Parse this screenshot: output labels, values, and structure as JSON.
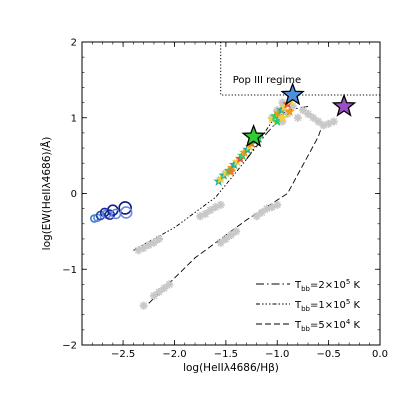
{
  "chart_data": {
    "type": "scatter",
    "title": "",
    "xlabel": "log(HeIIλ4686/Hβ)",
    "ylabel": "log(EW(HeIIλ4686)/Å)",
    "xlim": [
      -2.9,
      0.0
    ],
    "ylim": [
      -2.0,
      2.0
    ],
    "xticks": [
      -2.5,
      -2.0,
      -1.5,
      -1.0,
      -0.5,
      0.0
    ],
    "xtick_labels": [
      "−2.5",
      "−2.0",
      "−1.5",
      "−1.0",
      "−0.5",
      "0.0"
    ],
    "yticks": [
      -2,
      -1,
      0,
      1,
      2
    ],
    "ytick_labels": [
      "−2",
      "−1",
      "0",
      "1",
      "2"
    ],
    "grid": false,
    "legend_position": "bottom-right",
    "annotations": [
      {
        "text": "Pop III regime",
        "x": -1.1,
        "y": 1.5
      }
    ],
    "regions": [
      {
        "name": "pop-iii-regime",
        "style": "dotted",
        "boundary": [
          [
            -1.55,
            2.0
          ],
          [
            -1.55,
            1.3
          ],
          [
            0.0,
            1.3
          ]
        ]
      }
    ],
    "legend": [
      {
        "label": "T_bb=2×10⁵ K",
        "main": "T",
        "sub": "bb",
        "rest": "=2×10",
        "sup": "5",
        "tail": " K",
        "dash": "8 3 1.5 3"
      },
      {
        "label": "T_bb=1×10⁵ K",
        "main": "T",
        "sub": "bb",
        "rest": "=1×10",
        "sup": "5",
        "tail": " K",
        "dash": "4 2 1.5 2 1.5 2 1.5 2"
      },
      {
        "label": "T_bb=5×10⁴ K",
        "main": "T",
        "sub": "bb",
        "rest": "=5×10",
        "sup": "4",
        "tail": " K",
        "dash": "6 3"
      }
    ],
    "series": [
      {
        "kind": "line",
        "color": "#000000",
        "dash": "4 2 1.5 2 1.5 2 1.5 2",
        "points": [
          [
            -2.4,
            -0.75
          ],
          [
            -2.0,
            -0.45
          ],
          [
            -1.6,
            -0.05
          ],
          [
            -1.3,
            0.45
          ],
          [
            -1.05,
            0.95
          ],
          [
            -0.9,
            1.1
          ]
        ]
      },
      {
        "kind": "line",
        "color": "#000000",
        "dash": "6 3",
        "points": [
          [
            -2.25,
            -1.45
          ],
          [
            -1.8,
            -0.85
          ],
          [
            -1.3,
            -0.35
          ],
          [
            -0.9,
            0.0
          ],
          [
            -0.6,
            0.75
          ],
          [
            -0.55,
            0.95
          ]
        ]
      },
      {
        "kind": "line",
        "color": "#000000",
        "dash": "8 3 1.5 3",
        "points": [
          [
            -1.3,
            0.45
          ],
          [
            -1.1,
            0.8
          ],
          [
            -0.9,
            1.1
          ],
          [
            -0.7,
            1.15
          ]
        ]
      },
      {
        "kind": "scatter",
        "marker": "cross-cloud",
        "color": "#c8c8c8",
        "points": [
          [
            -2.35,
            -0.75
          ],
          [
            -2.3,
            -0.72
          ],
          [
            -2.25,
            -0.68
          ],
          [
            -2.2,
            -0.65
          ],
          [
            -2.15,
            -0.6
          ],
          [
            -2.3,
            -1.48
          ],
          [
            -2.2,
            -1.35
          ],
          [
            -2.15,
            -1.3
          ],
          [
            -2.1,
            -1.25
          ],
          [
            -2.05,
            -1.2
          ],
          [
            -1.75,
            -0.3
          ],
          [
            -1.7,
            -0.27
          ],
          [
            -1.65,
            -0.22
          ],
          [
            -1.6,
            -0.18
          ],
          [
            -1.55,
            -0.15
          ],
          [
            -1.55,
            -0.65
          ],
          [
            -1.5,
            -0.6
          ],
          [
            -1.45,
            -0.55
          ],
          [
            -1.4,
            -0.5
          ],
          [
            -1.2,
            -0.3
          ],
          [
            -1.15,
            -0.25
          ],
          [
            -1.1,
            -0.2
          ],
          [
            -1.05,
            -0.18
          ],
          [
            -1.0,
            -0.15
          ],
          [
            -0.95,
            1.2
          ],
          [
            -0.9,
            1.05
          ],
          [
            -0.85,
            1.15
          ],
          [
            -0.8,
            1.0
          ],
          [
            -0.75,
            1.1
          ],
          [
            -0.7,
            1.05
          ],
          [
            -0.65,
            1.0
          ],
          [
            -0.6,
            0.95
          ],
          [
            -0.55,
            0.9
          ],
          [
            -0.5,
            0.92
          ],
          [
            -0.45,
            0.95
          ],
          [
            -1.0,
            1.1
          ],
          [
            -0.95,
            0.95
          ],
          [
            -1.05,
            1.0
          ]
        ]
      },
      {
        "kind": "scatter",
        "marker": "circle-open",
        "points": [
          {
            "x": -2.78,
            "y": -0.33,
            "color": "#3a78c8",
            "r": 3.5
          },
          {
            "x": -2.75,
            "y": -0.32,
            "color": "#5a8ad8",
            "r": 3.5
          },
          {
            "x": -2.72,
            "y": -0.29,
            "color": "#2a4aa8",
            "r": 4
          },
          {
            "x": -2.68,
            "y": -0.25,
            "color": "#142890",
            "r": 4
          },
          {
            "x": -2.66,
            "y": -0.27,
            "color": "#6a8ae0",
            "r": 4
          },
          {
            "x": -2.63,
            "y": -0.28,
            "color": "#1c2c9c",
            "r": 4.5
          },
          {
            "x": -2.6,
            "y": -0.22,
            "color": "#10208a",
            "r": 5
          },
          {
            "x": -2.57,
            "y": -0.27,
            "color": "#6a8ae0",
            "r": 4.5
          },
          {
            "x": -2.48,
            "y": -0.19,
            "color": "#0d1a80",
            "r": 6
          },
          {
            "x": -2.47,
            "y": -0.25,
            "color": "#6a8ae0",
            "r": 5.5
          }
        ]
      },
      {
        "kind": "scatter",
        "marker": "star-small",
        "points": [
          {
            "x": -1.57,
            "y": 0.16,
            "color": "#20b2aa"
          },
          {
            "x": -1.55,
            "y": 0.19,
            "color": "#f4d03f"
          },
          {
            "x": -1.52,
            "y": 0.24,
            "color": "#20b2aa"
          },
          {
            "x": -1.5,
            "y": 0.27,
            "color": "#f4d03f"
          },
          {
            "x": -1.47,
            "y": 0.3,
            "color": "#2ecc71"
          },
          {
            "x": -1.44,
            "y": 0.34,
            "color": "#f39c12"
          },
          {
            "x": -1.42,
            "y": 0.38,
            "color": "#20b2aa"
          },
          {
            "x": -1.39,
            "y": 0.42,
            "color": "#f4d03f"
          },
          {
            "x": -1.36,
            "y": 0.46,
            "color": "#e74c3c"
          },
          {
            "x": -1.34,
            "y": 0.5,
            "color": "#2ecc71"
          },
          {
            "x": -1.32,
            "y": 0.54,
            "color": "#f39c12"
          },
          {
            "x": -1.29,
            "y": 0.58,
            "color": "#20b2aa"
          },
          {
            "x": -1.27,
            "y": 0.62,
            "color": "#f4d03f"
          },
          {
            "x": -1.25,
            "y": 0.66,
            "color": "#e67e22"
          },
          {
            "x": -1.05,
            "y": 0.98,
            "color": "#f4d03f"
          },
          {
            "x": -1.02,
            "y": 1.02,
            "color": "#2ecc71"
          },
          {
            "x": -0.99,
            "y": 1.06,
            "color": "#f39c12"
          },
          {
            "x": -0.96,
            "y": 1.1,
            "color": "#20b2aa"
          },
          {
            "x": -0.93,
            "y": 1.14,
            "color": "#f4d03f"
          },
          {
            "x": -0.9,
            "y": 1.18,
            "color": "#e74c3c"
          },
          {
            "x": -0.87,
            "y": 1.22,
            "color": "#f4d03f"
          },
          {
            "x": -1.0,
            "y": 0.95,
            "color": "#2ecc71"
          },
          {
            "x": -0.95,
            "y": 1.0,
            "color": "#f4d03f"
          },
          {
            "x": -0.88,
            "y": 1.08,
            "color": "#f39c12"
          },
          {
            "x": -1.22,
            "y": 0.7,
            "color": "#20b2aa"
          },
          {
            "x": -1.18,
            "y": 0.73,
            "color": "#2ecc71"
          },
          {
            "x": -1.45,
            "y": 0.29,
            "color": "#e67e22"
          }
        ]
      },
      {
        "kind": "scatter",
        "marker": "star-large",
        "points": [
          {
            "x": -1.23,
            "y": 0.75,
            "color": "#32cd32"
          },
          {
            "x": -0.85,
            "y": 1.3,
            "color": "#4a90e2"
          },
          {
            "x": -0.35,
            "y": 1.15,
            "color": "#9b4fc4"
          }
        ]
      }
    ]
  }
}
